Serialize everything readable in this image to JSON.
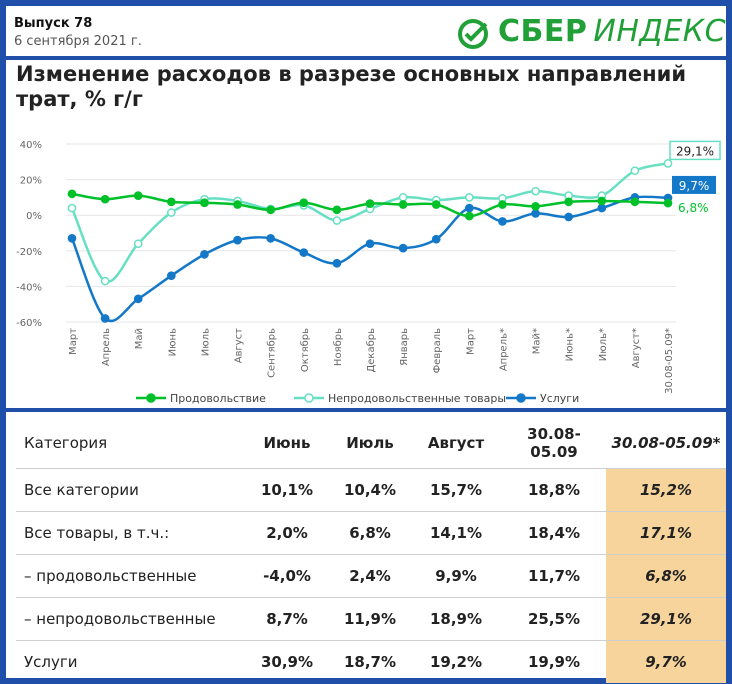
{
  "header": {
    "issue": "Выпуск 78",
    "date": "6 сентября 2021 г.",
    "brand_bold": "СБЕР",
    "brand_light": "ИНДЕКС"
  },
  "chart_data": {
    "type": "line",
    "title": "Изменение расходов в разрезе основных направлений трат, % г/г",
    "categories": [
      "Март",
      "Апрель",
      "Май",
      "Июнь",
      "Июль",
      "Август",
      "Сентябрь",
      "Октябрь",
      "Ноябрь",
      "Декабрь",
      "Январь",
      "Февраль",
      "Март",
      "Апрель*",
      "Май*",
      "Июнь*",
      "Июль*",
      "Август*",
      "30.08-05.09*"
    ],
    "ylim": [
      -60,
      40
    ],
    "yticks": [
      "40%",
      "20%",
      "0%",
      "-20%",
      "-40%",
      "-60%"
    ],
    "series": [
      {
        "name": "Продовольствие",
        "color": "#00c02a",
        "hollow": false,
        "values": [
          12,
          9,
          11,
          7.5,
          7,
          6,
          3,
          7,
          3,
          6.5,
          6,
          6,
          -0.5,
          6,
          5,
          7.5,
          8,
          7.5,
          6.8
        ]
      },
      {
        "name": "Непродовольственные товары",
        "color": "#67dfc3",
        "hollow": true,
        "values": [
          4,
          -37,
          -16,
          1.5,
          9,
          8,
          3.5,
          5.5,
          -3,
          3.5,
          10,
          8.5,
          10,
          9.5,
          13.5,
          11,
          11,
          25,
          29.1
        ]
      },
      {
        "name": "Услуги",
        "color": "#1478c8",
        "hollow": false,
        "values": [
          -13,
          -58,
          -47,
          -34,
          -22,
          -14,
          -13,
          -21,
          -27,
          -16,
          -18.5,
          -13.5,
          4,
          -3.5,
          1,
          -1,
          4,
          10,
          9.7
        ]
      }
    ],
    "end_labels": [
      "6,8%",
      "29,1%",
      "9,7%"
    ]
  },
  "table": {
    "headers": [
      "Категория",
      "Июнь",
      "Июль",
      "Август",
      "30.08-\n05.09",
      "30.08-05.09*"
    ],
    "rows": [
      [
        "Все категории",
        "10,1%",
        "10,4%",
        "15,7%",
        "18,8%",
        "15,2%"
      ],
      [
        "Все товары, в т.ч.:",
        "2,0%",
        "6,8%",
        "14,1%",
        "18,4%",
        "17,1%"
      ],
      [
        "– продовольственные",
        "-4,0%",
        "2,4%",
        "9,9%",
        "11,7%",
        "6,8%"
      ],
      [
        "– непродовольственные",
        "8,7%",
        "11,9%",
        "18,9%",
        "25,5%",
        "29,1%"
      ],
      [
        "Услуги",
        "30,9%",
        "18,7%",
        "19,2%",
        "19,9%",
        "9,7%"
      ]
    ]
  }
}
